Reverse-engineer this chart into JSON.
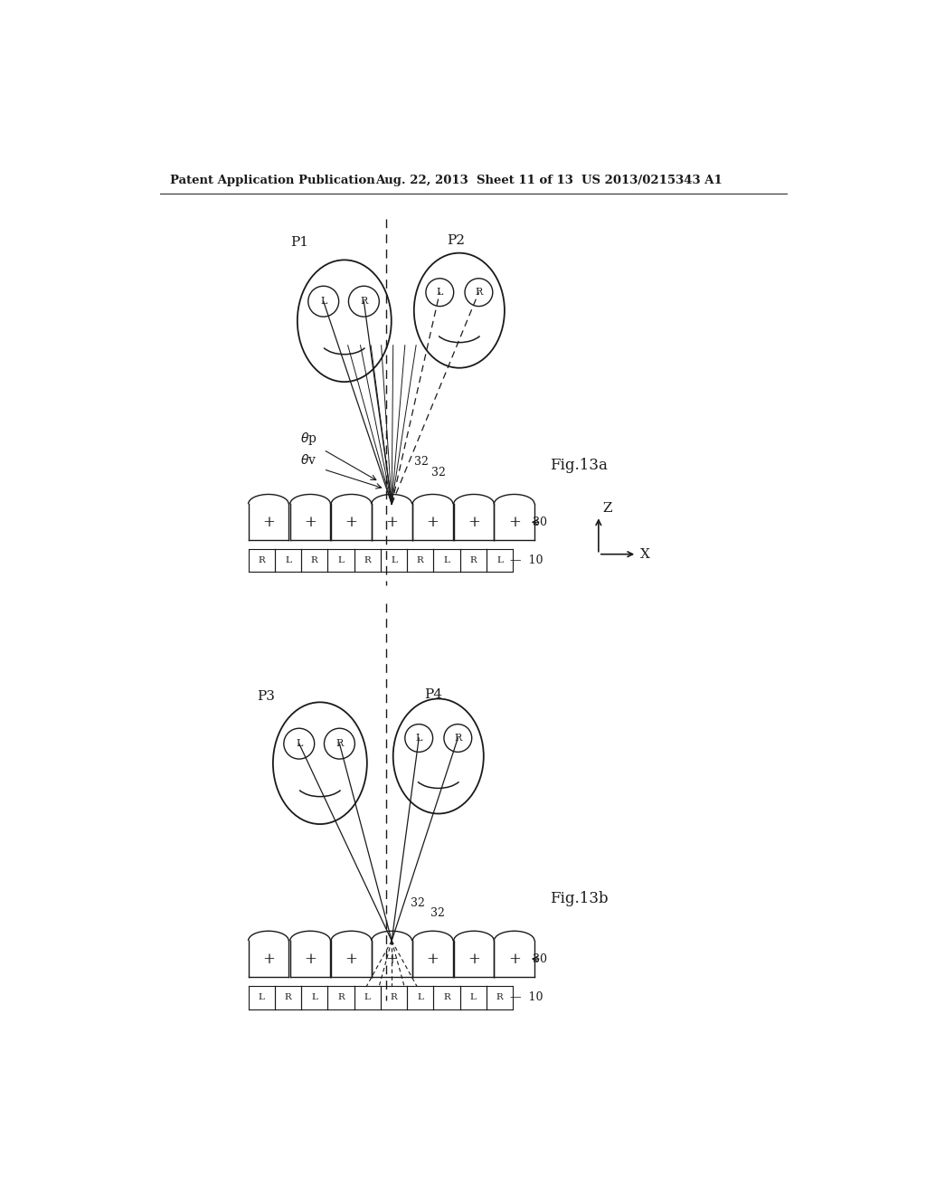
{
  "header_left": "Patent Application Publication",
  "header_mid": "Aug. 22, 2013  Sheet 11 of 13",
  "header_right": "US 2013/0215343 A1",
  "fig_a_label": "Fig.13a",
  "fig_b_label": "Fig.13b",
  "bg": "#ffffff",
  "lc": "#1a1a1a"
}
